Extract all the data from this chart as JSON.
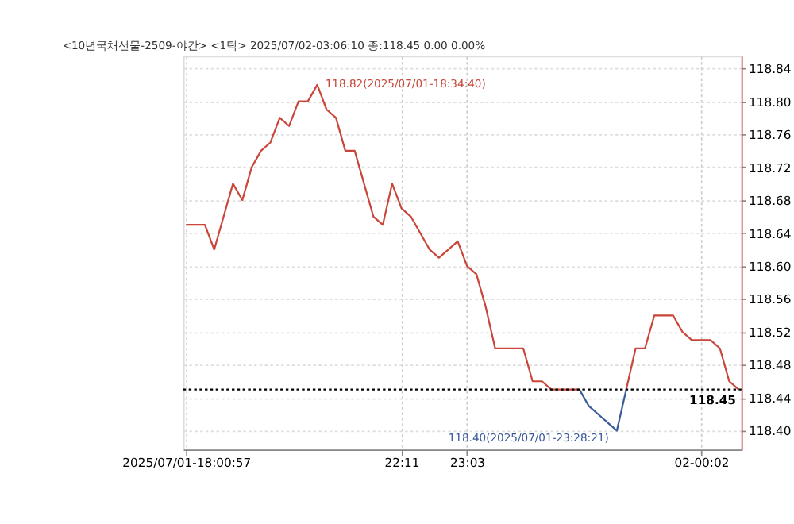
{
  "chart_data": {
    "type": "line",
    "title": "<10년국채선물-2509-야간> <1틱> 2025/07/02-03:06:10 종:118.45 0.00 0.00%",
    "categories": [
      "2025/07/01-18:00:57",
      null,
      null,
      null,
      null,
      null,
      null,
      null,
      null,
      null,
      null,
      null,
      null,
      null,
      null,
      null,
      null,
      null,
      null,
      null,
      null,
      null,
      null,
      "22:11",
      null,
      null,
      null,
      null,
      null,
      null,
      "23:03",
      null,
      null,
      null,
      null,
      null,
      null,
      null,
      null,
      null,
      null,
      null,
      null,
      null,
      null,
      null,
      null,
      null,
      null,
      null,
      null,
      null,
      null,
      null,
      null,
      "02-00:02",
      null,
      null,
      null,
      null
    ],
    "series": [
      {
        "color": "#c8463a",
        "values": [
          118.65,
          118.65,
          118.65,
          118.62,
          118.66,
          118.7,
          118.68,
          118.72,
          118.74,
          118.75,
          118.78,
          118.77,
          118.8,
          118.8,
          118.82,
          118.79,
          118.78,
          118.74,
          118.74,
          118.7,
          118.66,
          118.65,
          118.7,
          118.67,
          118.66,
          118.64,
          118.62,
          118.61,
          118.62,
          118.63,
          118.6,
          118.59,
          118.55,
          118.5,
          118.5,
          118.5,
          118.5,
          118.46,
          118.46,
          118.45,
          118.45,
          118.45,
          118.45,
          null,
          null,
          null,
          null,
          118.45,
          118.5,
          118.5,
          118.54,
          118.54,
          118.54,
          118.52,
          118.51,
          118.51,
          118.51,
          118.5,
          118.46,
          118.45
        ]
      },
      {
        "color": "#3a5a9a",
        "values": [
          null,
          null,
          null,
          null,
          null,
          null,
          null,
          null,
          null,
          null,
          null,
          null,
          null,
          null,
          null,
          null,
          null,
          null,
          null,
          null,
          null,
          null,
          null,
          null,
          null,
          null,
          null,
          null,
          null,
          null,
          null,
          null,
          null,
          null,
          null,
          null,
          null,
          null,
          null,
          null,
          null,
          null,
          118.45,
          118.43,
          118.42,
          118.41,
          118.4,
          118.45,
          null,
          null,
          null,
          null,
          null,
          null,
          null,
          null,
          null,
          null,
          null,
          null
        ]
      }
    ],
    "ylim": [
      118.377,
      118.855
    ],
    "yticks": [
      {
        "value": 118.4,
        "label": "118.40"
      },
      {
        "value": 118.44,
        "label": "118.44"
      },
      {
        "value": 118.48,
        "label": "118.48"
      },
      {
        "value": 118.52,
        "label": "118.52"
      },
      {
        "value": 118.56,
        "label": "118.56"
      },
      {
        "value": 118.6,
        "label": "118.60"
      },
      {
        "value": 118.64,
        "label": "118.64"
      },
      {
        "value": 118.68,
        "label": "118.68"
      },
      {
        "value": 118.72,
        "label": "118.72"
      },
      {
        "value": 118.76,
        "label": "118.76"
      },
      {
        "value": 118.8,
        "label": "118.80"
      },
      {
        "value": 118.84,
        "label": "118.84"
      }
    ],
    "grid": true,
    "ref_lines": [
      {
        "axis": "y",
        "value": 118.45,
        "label": "118.45",
        "color": "#000000",
        "line_style": "dotted"
      }
    ],
    "annotations": [
      "118.82(2025/07/01-18:34:40)",
      "118.40(2025/07/01-23:28:21)"
    ]
  }
}
